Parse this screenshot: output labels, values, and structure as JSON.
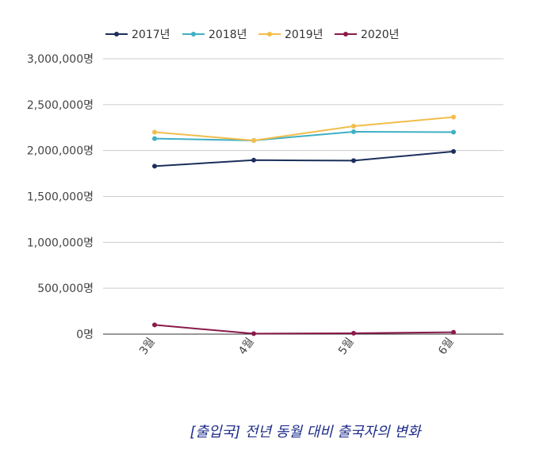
{
  "chart_data": {
    "type": "line",
    "categories": [
      "3월",
      "4월",
      "5월",
      "6월"
    ],
    "series": [
      {
        "name": "2017년",
        "color": "#1b2f5b",
        "values": [
          1830000,
          1895000,
          1890000,
          1990000
        ]
      },
      {
        "name": "2018년",
        "color": "#3fb0c4",
        "values": [
          2130000,
          2110000,
          2205000,
          2200000
        ]
      },
      {
        "name": "2019년",
        "color": "#f2bd4b",
        "values": [
          2200000,
          2110000,
          2265000,
          2365000
        ]
      },
      {
        "name": "2020년",
        "color": "#8b1a4a",
        "values": [
          100000,
          5000,
          10000,
          20000
        ]
      }
    ],
    "yticks": [
      "0명",
      "500,000명",
      "1,000,000명",
      "1,500,000명",
      "2,000,000명",
      "2,500,000명",
      "3,000,000명"
    ],
    "ylim": [
      0,
      3000000
    ],
    "grid": true,
    "legend_position": "top-left"
  },
  "caption": "[출입국] 전년 동월 대비 출국자의 변화"
}
